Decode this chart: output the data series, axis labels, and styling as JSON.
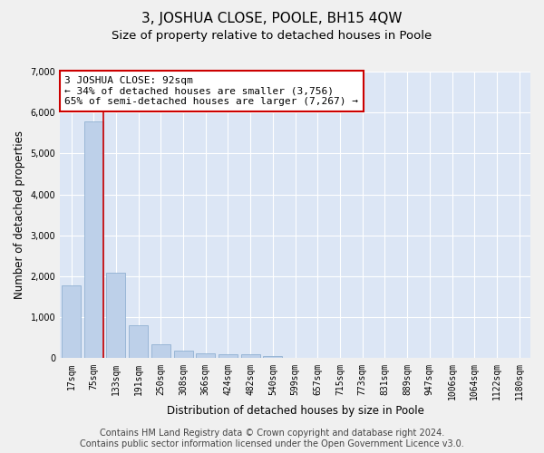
{
  "title": "3, JOSHUA CLOSE, POOLE, BH15 4QW",
  "subtitle": "Size of property relative to detached houses in Poole",
  "xlabel": "Distribution of detached houses by size in Poole",
  "ylabel": "Number of detached properties",
  "categories": [
    "17sqm",
    "75sqm",
    "133sqm",
    "191sqm",
    "250sqm",
    "308sqm",
    "366sqm",
    "424sqm",
    "482sqm",
    "540sqm",
    "599sqm",
    "657sqm",
    "715sqm",
    "773sqm",
    "831sqm",
    "889sqm",
    "947sqm",
    "1006sqm",
    "1064sqm",
    "1122sqm",
    "1180sqm"
  ],
  "values": [
    1780,
    5780,
    2080,
    800,
    340,
    190,
    115,
    105,
    95,
    65,
    0,
    0,
    0,
    0,
    0,
    0,
    0,
    0,
    0,
    0,
    0
  ],
  "bar_color": "#bdd0e9",
  "bar_edge_color": "#85a8cc",
  "highlight_line_color": "#cc0000",
  "annotation_text": "3 JOSHUA CLOSE: 92sqm\n← 34% of detached houses are smaller (3,756)\n65% of semi-detached houses are larger (7,267) →",
  "annotation_box_color": "#ffffff",
  "annotation_box_edge_color": "#cc0000",
  "ylim": [
    0,
    7000
  ],
  "yticks": [
    0,
    1000,
    2000,
    3000,
    4000,
    5000,
    6000,
    7000
  ],
  "footer_line1": "Contains HM Land Registry data © Crown copyright and database right 2024.",
  "footer_line2": "Contains public sector information licensed under the Open Government Licence v3.0.",
  "fig_bg_color": "#f0f0f0",
  "plot_bg_color": "#dce6f5",
  "grid_color": "#ffffff",
  "title_fontsize": 11,
  "subtitle_fontsize": 9.5,
  "axis_label_fontsize": 8.5,
  "tick_fontsize": 7,
  "footer_fontsize": 7,
  "annotation_fontsize": 8
}
